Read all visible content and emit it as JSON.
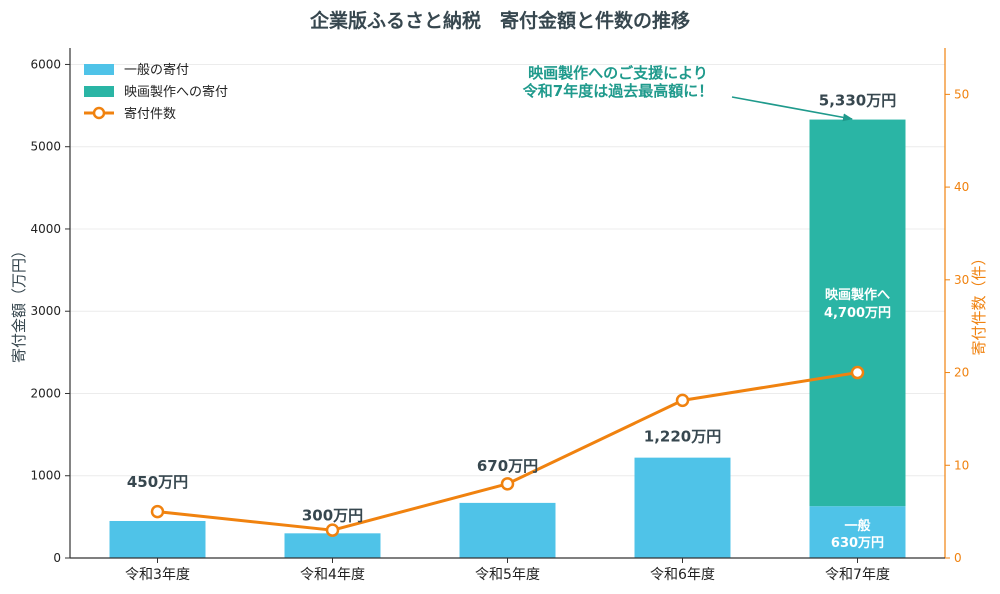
{
  "chart_data": {
    "type": "bar",
    "title": "企業版ふるさと納税　寄付金額と件数の推移",
    "categories": [
      "令和3年度",
      "令和4年度",
      "令和5年度",
      "令和6年度",
      "令和7年度"
    ],
    "series": [
      {
        "name": "一般の寄付",
        "kind": "bar",
        "axis": "left",
        "values": [
          450,
          300,
          670,
          1220,
          630
        ]
      },
      {
        "name": "映画製作への寄付",
        "kind": "bar",
        "axis": "left",
        "stacked": true,
        "values": [
          0,
          0,
          0,
          0,
          4700
        ]
      },
      {
        "name": "寄付件数",
        "kind": "line",
        "axis": "right",
        "values": [
          5,
          3,
          8,
          17,
          20
        ]
      }
    ],
    "total_labels": [
      "450万円",
      "300万円",
      "670万円",
      "1,220万円",
      "5,330万円"
    ],
    "segment_labels": {
      "film": {
        "line1": "映画製作へ",
        "line2": "4,700万円"
      },
      "general": {
        "line1": "一般",
        "line2": "630万円"
      }
    },
    "annotation": {
      "line1": "映画製作へのご支援により",
      "line2": "令和7年度は過去最高額に！"
    },
    "ylabel": "寄付金額（万円）",
    "y2label": "寄付件数（件）",
    "ylim": [
      0,
      6200
    ],
    "y2lim": [
      0,
      55
    ],
    "yticks": [
      0,
      1000,
      2000,
      3000,
      4000,
      5000,
      6000
    ],
    "y2ticks": [
      0,
      10,
      20,
      30,
      40,
      50
    ],
    "grid": true,
    "legend_position": "top-left",
    "colors": {
      "general": "#4fc3e8",
      "film": "#2ab5a5",
      "line": "#f0820f",
      "annotation": "#1f9a8c",
      "text": "#37474f",
      "axis_left": "#333333",
      "axis_right": "#f0820f"
    }
  }
}
